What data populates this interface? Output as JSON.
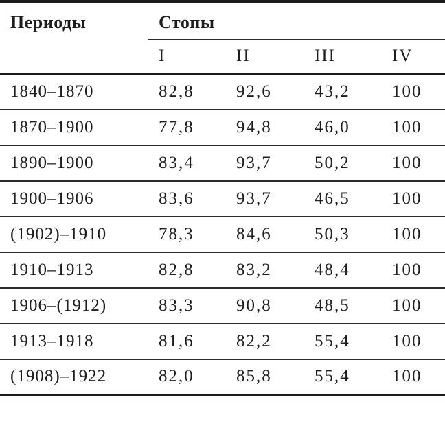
{
  "header": {
    "period_column": "Периоды",
    "feet_group": "Стопы",
    "feet_columns": [
      "I",
      "II",
      "III",
      "IV"
    ]
  },
  "rows": [
    [
      "1840–1870",
      "82,8",
      "92,6",
      "43,2",
      "100"
    ],
    [
      "1870–1900",
      "77,8",
      "94,8",
      "46,0",
      "100"
    ],
    [
      "1890–1900",
      "83,4",
      "93,7",
      "50,2",
      "100"
    ],
    [
      "1900–1906",
      "83,6",
      "93,7",
      "46,5",
      "100"
    ],
    [
      "(1902)–1910",
      "78,3",
      "84,6",
      "50,3",
      "100"
    ],
    [
      "1910–1913",
      "82,8",
      "83,2",
      "48,4",
      "100"
    ],
    [
      "1906–(1912)",
      "83,3",
      "90,8",
      "48,5",
      "100"
    ],
    [
      "1913–1918",
      "81,6",
      "82,2",
      "55,4",
      "100"
    ],
    [
      "(1908)–1922",
      "82,0",
      "85,8",
      "55,4",
      "100"
    ]
  ],
  "colors": {
    "text": "#1e1e1e",
    "heavy_rule": "#191919",
    "light_rule": "#2b2b2b",
    "background": "#ffffff"
  }
}
